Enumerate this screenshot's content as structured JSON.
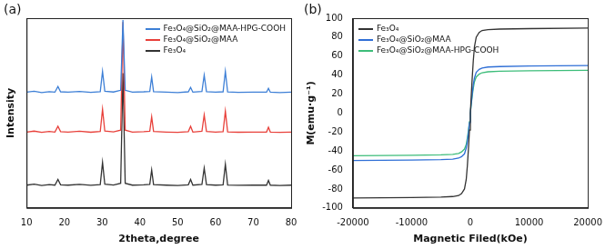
{
  "chart_data": [
    {
      "type": "line",
      "title": "(a)",
      "x_label": "2theta,degree",
      "y_label": "Intensity",
      "x": [
        10,
        12,
        14,
        16,
        17.5,
        18.3,
        19,
        21,
        24,
        27,
        29.5,
        30.1,
        30.7,
        33,
        34.9,
        35.5,
        36.1,
        38,
        41,
        42.6,
        43.1,
        43.6,
        47,
        50,
        52.8,
        53.4,
        54,
        56.4,
        57,
        57.6,
        60,
        62,
        62.6,
        63.2,
        66,
        70,
        73.5,
        74,
        74.5,
        77,
        80
      ],
      "series": [
        {
          "name": "Fe₃O₄@SiO₂@MAA-HPG-COOH",
          "color": "#3d7fd6",
          "values": [
            61,
            61.5,
            60.8,
            61.3,
            61,
            64,
            61.2,
            61,
            61.4,
            60.9,
            61.3,
            72,
            61.5,
            61.1,
            62,
            99,
            62,
            61,
            61.2,
            61.4,
            69,
            61.3,
            61,
            60.8,
            61.2,
            63.5,
            61,
            61.4,
            70,
            61.3,
            61,
            61.2,
            72,
            61.1,
            60.9,
            61,
            61,
            63,
            61,
            60.8,
            61
          ]
        },
        {
          "name": "Fe₃O₄@SiO₂@MAA",
          "color": "#e8403a",
          "values": [
            40,
            40.5,
            39.8,
            40.3,
            40,
            43,
            40.2,
            40,
            40.4,
            39.9,
            40.3,
            52,
            40.5,
            40.1,
            41,
            98,
            41,
            40,
            40.2,
            40.4,
            48,
            40.3,
            40,
            39.8,
            40.2,
            43,
            40,
            40.4,
            49,
            40.3,
            40,
            40.2,
            51,
            40.1,
            39.9,
            40,
            40,
            42.5,
            40,
            39.8,
            40
          ]
        },
        {
          "name": "Fe₃O₄",
          "color": "#333333",
          "values": [
            12,
            12.5,
            11.8,
            12.3,
            12,
            15,
            12.2,
            12,
            12.4,
            11.9,
            12.3,
            24,
            12.5,
            12.1,
            13,
            71,
            13,
            12,
            12.2,
            12.4,
            20,
            12.3,
            12,
            11.8,
            12.2,
            15,
            12,
            12.4,
            21,
            12.3,
            12,
            12.2,
            23,
            12.1,
            11.9,
            12,
            12,
            14.5,
            12,
            11.8,
            12
          ]
        }
      ],
      "xlim": [
        10,
        80
      ],
      "xticks": [
        10,
        20,
        30,
        40,
        50,
        60,
        70,
        80
      ],
      "ylim": [
        0,
        100
      ],
      "tick_labels": "x",
      "grid": false,
      "legend": "upper right"
    },
    {
      "type": "line",
      "title": "(b)",
      "x_label": "Magnetic Filed(kOe)",
      "y_label": "M(emu·g⁻¹)",
      "x": [
        -20000,
        -10000,
        -5000,
        -3000,
        -2000,
        -1500,
        -1000,
        -700,
        -500,
        -300,
        -150,
        0,
        150,
        300,
        500,
        700,
        1000,
        1500,
        2000,
        3000,
        5000,
        10000,
        20000
      ],
      "series": [
        {
          "name": "Fe₃O₄",
          "color": "#333333",
          "values": [
            -89.5,
            -89,
            -88.5,
            -88,
            -87,
            -85,
            -80,
            -70,
            -55,
            -35,
            -18,
            0,
            18,
            35,
            55,
            70,
            80,
            85,
            87,
            88,
            88.5,
            89,
            89.5
          ]
        },
        {
          "name": "Fe₃O₄@SiO₂@MAA",
          "color": "#2f6fd6",
          "values": [
            -50,
            -49.5,
            -49,
            -48.5,
            -47.5,
            -46,
            -43,
            -37,
            -30,
            -19,
            -10,
            0,
            10,
            19,
            30,
            37,
            43,
            46,
            47.5,
            48.5,
            49,
            49.5,
            50
          ]
        },
        {
          "name": "Fe₃O₄@SiO₂@MAA-HPG-COOH",
          "color": "#3dbd7a",
          "values": [
            -45,
            -44.5,
            -44,
            -43.5,
            -42.5,
            -41,
            -38,
            -33,
            -26,
            -17,
            -9,
            0,
            9,
            17,
            26,
            33,
            38,
            41,
            42.5,
            43.5,
            44,
            44.5,
            45
          ]
        }
      ],
      "xlim": [
        -20000,
        20000
      ],
      "xticks": [
        -20000,
        -10000,
        0,
        10000,
        20000
      ],
      "ylim": [
        -100,
        100
      ],
      "yticks": [
        -100,
        -80,
        -60,
        -40,
        -20,
        0,
        20,
        40,
        60,
        80,
        100
      ],
      "grid": false,
      "legend": "upper left"
    }
  ]
}
